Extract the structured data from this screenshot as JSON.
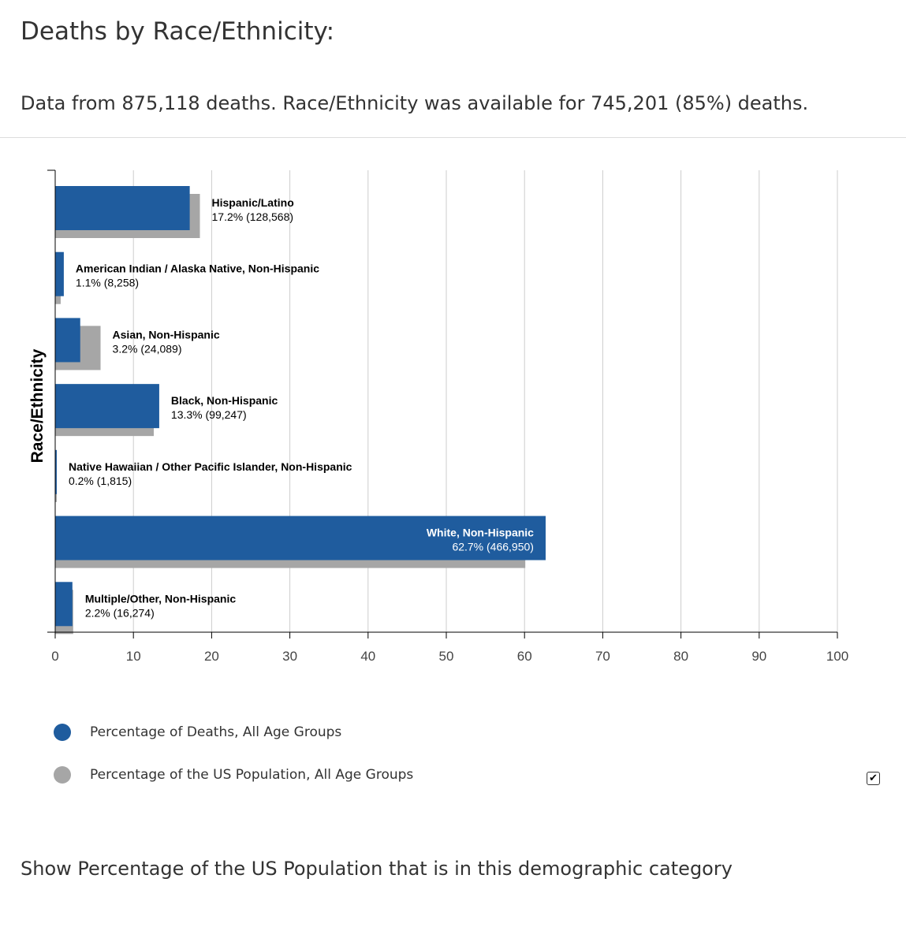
{
  "header": {
    "title": "Deaths by Race/Ethnicity:",
    "summary": "Data from 875,118 deaths. Race/Ethnicity was available for 745,201 (85%) deaths."
  },
  "chart_data": {
    "type": "bar",
    "orientation": "horizontal",
    "ylabel": "Race/Ethnicity",
    "xlabel": "",
    "xlim": [
      0,
      100
    ],
    "x_ticks": [
      0,
      10,
      20,
      30,
      40,
      50,
      60,
      70,
      80,
      90,
      100
    ],
    "grid": true,
    "categories": [
      "Hispanic/Latino",
      "American Indian / Alaska Native, Non-Hispanic",
      "Asian, Non-Hispanic",
      "Black, Non-Hispanic",
      "Native Hawaiian / Other Pacific Islander, Non-Hispanic",
      "White, Non-Hispanic",
      "Multiple/Other, Non-Hispanic"
    ],
    "value_labels": [
      "17.2% (128,568)",
      "1.1% (8,258)",
      "3.2% (24,089)",
      "13.3% (99,247)",
      "0.2% (1,815)",
      "62.7% (466,950)",
      "2.2% (16,274)"
    ],
    "series": [
      {
        "name": "Percentage of Deaths, All Age Groups",
        "color": "#1f5c9e",
        "values": [
          17.2,
          1.1,
          3.2,
          13.3,
          0.2,
          62.7,
          2.2
        ]
      },
      {
        "name": "Percentage of the US Population, All Age Groups",
        "color": "#a6a6a6",
        "values": [
          18.5,
          0.7,
          5.8,
          12.6,
          0.2,
          60.1,
          2.3
        ]
      }
    ],
    "legend_position": "bottom-left"
  },
  "controls": {
    "show_population_checked": true,
    "show_population_label": "Show Percentage of the US Population that is in this demographic category",
    "check_icon": "checkmark-icon"
  }
}
